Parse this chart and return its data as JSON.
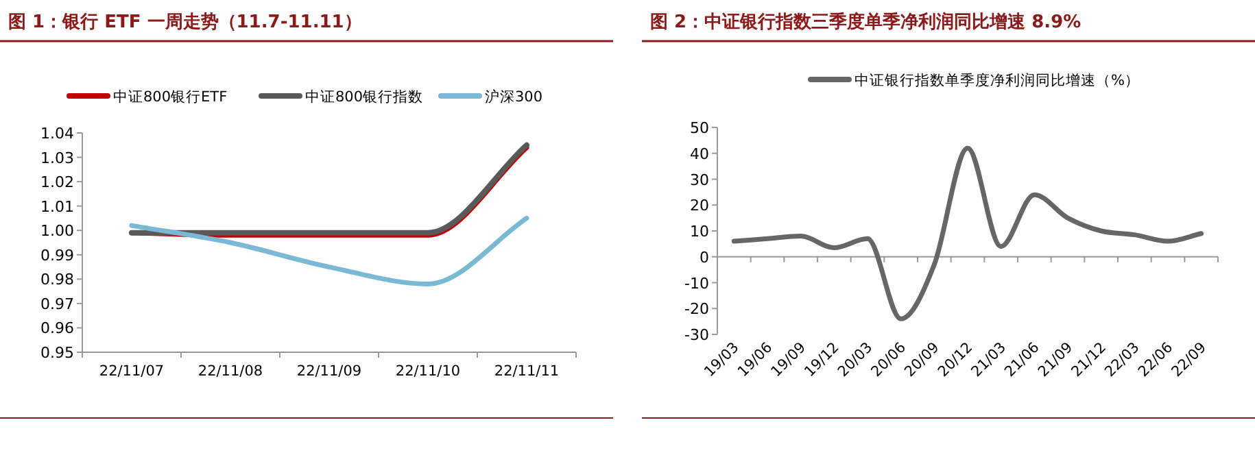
{
  "chart_data": [
    {
      "type": "line",
      "title": "图 1：银行 ETF 一周走势（11.7-11.11）",
      "legend": "top",
      "categories": [
        "22/11/07",
        "22/11/08",
        "22/11/09",
        "22/11/10",
        "22/11/11"
      ],
      "series": [
        {
          "name": "中证800银行ETF",
          "color": "#c00000",
          "values": [
            0.999,
            0.998,
            0.998,
            0.998,
            1.034
          ]
        },
        {
          "name": "中证800银行指数",
          "color": "#595959",
          "values": [
            0.999,
            0.999,
            0.999,
            0.999,
            1.035
          ]
        },
        {
          "name": "沪深300",
          "color": "#7ab8d3",
          "values": [
            1.002,
            0.995,
            0.985,
            0.978,
            1.005
          ]
        }
      ],
      "ylim": [
        0.95,
        1.04
      ],
      "yticks": [
        0.95,
        0.96,
        0.97,
        0.98,
        0.99,
        {
          "value": 1,
          "label": "1.00"
        },
        1.01,
        1.02,
        1.03,
        1.04
      ]
    },
    {
      "type": "line",
      "title": "图 2：中证银行指数三季度单季净利润同比增速 8.9%",
      "legend": "top",
      "categories": [
        "19/03",
        "19/06",
        "19/09",
        "19/12",
        "20/03",
        "20/06",
        "20/09",
        "20/12",
        "21/03",
        "21/06",
        "21/09",
        "21/12",
        "22/03",
        "22/06",
        "22/09"
      ],
      "series": [
        {
          "name": "中证银行指数单季度净利润同比增速（%）",
          "color": "#666666",
          "values": [
            6,
            7,
            8,
            3.5,
            7,
            -24,
            -3,
            42,
            4,
            24,
            15,
            10,
            8.5,
            6,
            9
          ]
        }
      ],
      "ylim": [
        -30,
        50
      ],
      "yticks": [
        -30,
        -20,
        -10,
        0,
        10,
        20,
        30,
        40,
        50
      ]
    }
  ]
}
